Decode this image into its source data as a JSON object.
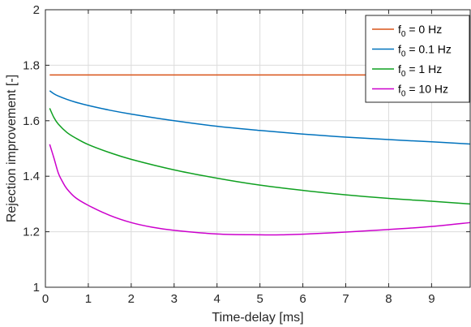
{
  "chart_data": {
    "type": "line",
    "xlabel": "Time-delay [ms]",
    "ylabel": "Rejection improvement [-]",
    "xlim": [
      0,
      9.9
    ],
    "ylim": [
      1,
      2
    ],
    "xticks": [
      0,
      1,
      2,
      3,
      4,
      5,
      6,
      7,
      8,
      9
    ],
    "yticks": [
      1,
      1.2,
      1.4,
      1.6,
      1.8,
      2
    ],
    "ytick_labels": [
      "1",
      "1.2",
      "1.4",
      "1.6",
      "1.8",
      "2"
    ],
    "grid": true,
    "legend_position": "top-right",
    "series": [
      {
        "name_base": "f",
        "name_sub": "0",
        "name_tail": " = 0 Hz",
        "color": "#d95319",
        "x": [
          0.1,
          1,
          2,
          3,
          4,
          5,
          6,
          7,
          8,
          9,
          9.9
        ],
        "y": [
          1.765,
          1.765,
          1.765,
          1.765,
          1.765,
          1.765,
          1.765,
          1.765,
          1.765,
          1.765,
          1.765
        ]
      },
      {
        "name_base": "f",
        "name_sub": "0",
        "name_tail": " = 0.1 Hz",
        "color": "#0072bd",
        "x": [
          0.1,
          0.2,
          0.3,
          0.5,
          0.7,
          1,
          1.5,
          2,
          3,
          4,
          5,
          6,
          7,
          8,
          9,
          9.9
        ],
        "y": [
          1.708,
          1.697,
          1.689,
          1.677,
          1.667,
          1.655,
          1.638,
          1.624,
          1.6,
          1.58,
          1.565,
          1.552,
          1.541,
          1.532,
          1.524,
          1.516
        ]
      },
      {
        "name_base": "f",
        "name_sub": "0",
        "name_tail": " = 1 Hz",
        "color": "#0fa020",
        "x": [
          0.1,
          0.2,
          0.3,
          0.5,
          0.7,
          1,
          1.5,
          2,
          3,
          4,
          5,
          6,
          7,
          8,
          9,
          9.9
        ],
        "y": [
          1.645,
          1.611,
          1.588,
          1.558,
          1.538,
          1.514,
          1.485,
          1.461,
          1.423,
          1.393,
          1.368,
          1.349,
          1.333,
          1.32,
          1.31,
          1.3
        ]
      },
      {
        "name_base": "f",
        "name_sub": "0",
        "name_tail": " = 10 Hz",
        "color": "#cc00cc",
        "x": [
          0.1,
          0.2,
          0.3,
          0.4,
          0.5,
          0.7,
          1,
          1.5,
          2,
          2.5,
          3,
          4,
          5,
          5.5,
          6,
          7,
          8,
          9,
          9.9
        ],
        "y": [
          1.515,
          1.465,
          1.412,
          1.38,
          1.355,
          1.323,
          1.295,
          1.259,
          1.233,
          1.216,
          1.205,
          1.192,
          1.189,
          1.189,
          1.191,
          1.199,
          1.208,
          1.219,
          1.233
        ]
      }
    ]
  }
}
